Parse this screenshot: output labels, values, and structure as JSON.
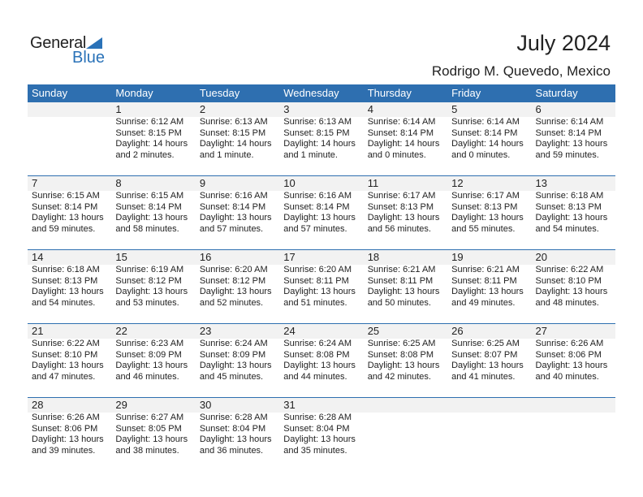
{
  "logo": {
    "text1": "General",
    "text2": "Blue"
  },
  "title": "July 2024",
  "location": "Rodrigo M. Quevedo, Mexico",
  "colors": {
    "accent": "#2e6fb0",
    "strip": "#f2f2f2"
  },
  "days": [
    "Sunday",
    "Monday",
    "Tuesday",
    "Wednesday",
    "Thursday",
    "Friday",
    "Saturday"
  ],
  "weeks": [
    [
      null,
      {
        "day": "1",
        "sunrise": "Sunrise: 6:12 AM",
        "sunset": "Sunset: 8:15 PM",
        "daylight1": "Daylight: 14 hours",
        "daylight2": "and 2 minutes."
      },
      {
        "day": "2",
        "sunrise": "Sunrise: 6:13 AM",
        "sunset": "Sunset: 8:15 PM",
        "daylight1": "Daylight: 14 hours",
        "daylight2": "and 1 minute."
      },
      {
        "day": "3",
        "sunrise": "Sunrise: 6:13 AM",
        "sunset": "Sunset: 8:15 PM",
        "daylight1": "Daylight: 14 hours",
        "daylight2": "and 1 minute."
      },
      {
        "day": "4",
        "sunrise": "Sunrise: 6:14 AM",
        "sunset": "Sunset: 8:14 PM",
        "daylight1": "Daylight: 14 hours",
        "daylight2": "and 0 minutes."
      },
      {
        "day": "5",
        "sunrise": "Sunrise: 6:14 AM",
        "sunset": "Sunset: 8:14 PM",
        "daylight1": "Daylight: 14 hours",
        "daylight2": "and 0 minutes."
      },
      {
        "day": "6",
        "sunrise": "Sunrise: 6:14 AM",
        "sunset": "Sunset: 8:14 PM",
        "daylight1": "Daylight: 13 hours",
        "daylight2": "and 59 minutes."
      }
    ],
    [
      {
        "day": "7",
        "sunrise": "Sunrise: 6:15 AM",
        "sunset": "Sunset: 8:14 PM",
        "daylight1": "Daylight: 13 hours",
        "daylight2": "and 59 minutes."
      },
      {
        "day": "8",
        "sunrise": "Sunrise: 6:15 AM",
        "sunset": "Sunset: 8:14 PM",
        "daylight1": "Daylight: 13 hours",
        "daylight2": "and 58 minutes."
      },
      {
        "day": "9",
        "sunrise": "Sunrise: 6:16 AM",
        "sunset": "Sunset: 8:14 PM",
        "daylight1": "Daylight: 13 hours",
        "daylight2": "and 57 minutes."
      },
      {
        "day": "10",
        "sunrise": "Sunrise: 6:16 AM",
        "sunset": "Sunset: 8:14 PM",
        "daylight1": "Daylight: 13 hours",
        "daylight2": "and 57 minutes."
      },
      {
        "day": "11",
        "sunrise": "Sunrise: 6:17 AM",
        "sunset": "Sunset: 8:13 PM",
        "daylight1": "Daylight: 13 hours",
        "daylight2": "and 56 minutes."
      },
      {
        "day": "12",
        "sunrise": "Sunrise: 6:17 AM",
        "sunset": "Sunset: 8:13 PM",
        "daylight1": "Daylight: 13 hours",
        "daylight2": "and 55 minutes."
      },
      {
        "day": "13",
        "sunrise": "Sunrise: 6:18 AM",
        "sunset": "Sunset: 8:13 PM",
        "daylight1": "Daylight: 13 hours",
        "daylight2": "and 54 minutes."
      }
    ],
    [
      {
        "day": "14",
        "sunrise": "Sunrise: 6:18 AM",
        "sunset": "Sunset: 8:13 PM",
        "daylight1": "Daylight: 13 hours",
        "daylight2": "and 54 minutes."
      },
      {
        "day": "15",
        "sunrise": "Sunrise: 6:19 AM",
        "sunset": "Sunset: 8:12 PM",
        "daylight1": "Daylight: 13 hours",
        "daylight2": "and 53 minutes."
      },
      {
        "day": "16",
        "sunrise": "Sunrise: 6:20 AM",
        "sunset": "Sunset: 8:12 PM",
        "daylight1": "Daylight: 13 hours",
        "daylight2": "and 52 minutes."
      },
      {
        "day": "17",
        "sunrise": "Sunrise: 6:20 AM",
        "sunset": "Sunset: 8:11 PM",
        "daylight1": "Daylight: 13 hours",
        "daylight2": "and 51 minutes."
      },
      {
        "day": "18",
        "sunrise": "Sunrise: 6:21 AM",
        "sunset": "Sunset: 8:11 PM",
        "daylight1": "Daylight: 13 hours",
        "daylight2": "and 50 minutes."
      },
      {
        "day": "19",
        "sunrise": "Sunrise: 6:21 AM",
        "sunset": "Sunset: 8:11 PM",
        "daylight1": "Daylight: 13 hours",
        "daylight2": "and 49 minutes."
      },
      {
        "day": "20",
        "sunrise": "Sunrise: 6:22 AM",
        "sunset": "Sunset: 8:10 PM",
        "daylight1": "Daylight: 13 hours",
        "daylight2": "and 48 minutes."
      }
    ],
    [
      {
        "day": "21",
        "sunrise": "Sunrise: 6:22 AM",
        "sunset": "Sunset: 8:10 PM",
        "daylight1": "Daylight: 13 hours",
        "daylight2": "and 47 minutes."
      },
      {
        "day": "22",
        "sunrise": "Sunrise: 6:23 AM",
        "sunset": "Sunset: 8:09 PM",
        "daylight1": "Daylight: 13 hours",
        "daylight2": "and 46 minutes."
      },
      {
        "day": "23",
        "sunrise": "Sunrise: 6:24 AM",
        "sunset": "Sunset: 8:09 PM",
        "daylight1": "Daylight: 13 hours",
        "daylight2": "and 45 minutes."
      },
      {
        "day": "24",
        "sunrise": "Sunrise: 6:24 AM",
        "sunset": "Sunset: 8:08 PM",
        "daylight1": "Daylight: 13 hours",
        "daylight2": "and 44 minutes."
      },
      {
        "day": "25",
        "sunrise": "Sunrise: 6:25 AM",
        "sunset": "Sunset: 8:08 PM",
        "daylight1": "Daylight: 13 hours",
        "daylight2": "and 42 minutes."
      },
      {
        "day": "26",
        "sunrise": "Sunrise: 6:25 AM",
        "sunset": "Sunset: 8:07 PM",
        "daylight1": "Daylight: 13 hours",
        "daylight2": "and 41 minutes."
      },
      {
        "day": "27",
        "sunrise": "Sunrise: 6:26 AM",
        "sunset": "Sunset: 8:06 PM",
        "daylight1": "Daylight: 13 hours",
        "daylight2": "and 40 minutes."
      }
    ],
    [
      {
        "day": "28",
        "sunrise": "Sunrise: 6:26 AM",
        "sunset": "Sunset: 8:06 PM",
        "daylight1": "Daylight: 13 hours",
        "daylight2": "and 39 minutes."
      },
      {
        "day": "29",
        "sunrise": "Sunrise: 6:27 AM",
        "sunset": "Sunset: 8:05 PM",
        "daylight1": "Daylight: 13 hours",
        "daylight2": "and 38 minutes."
      },
      {
        "day": "30",
        "sunrise": "Sunrise: 6:28 AM",
        "sunset": "Sunset: 8:04 PM",
        "daylight1": "Daylight: 13 hours",
        "daylight2": "and 36 minutes."
      },
      {
        "day": "31",
        "sunrise": "Sunrise: 6:28 AM",
        "sunset": "Sunset: 8:04 PM",
        "daylight1": "Daylight: 13 hours",
        "daylight2": "and 35 minutes."
      },
      null,
      null,
      null
    ]
  ]
}
